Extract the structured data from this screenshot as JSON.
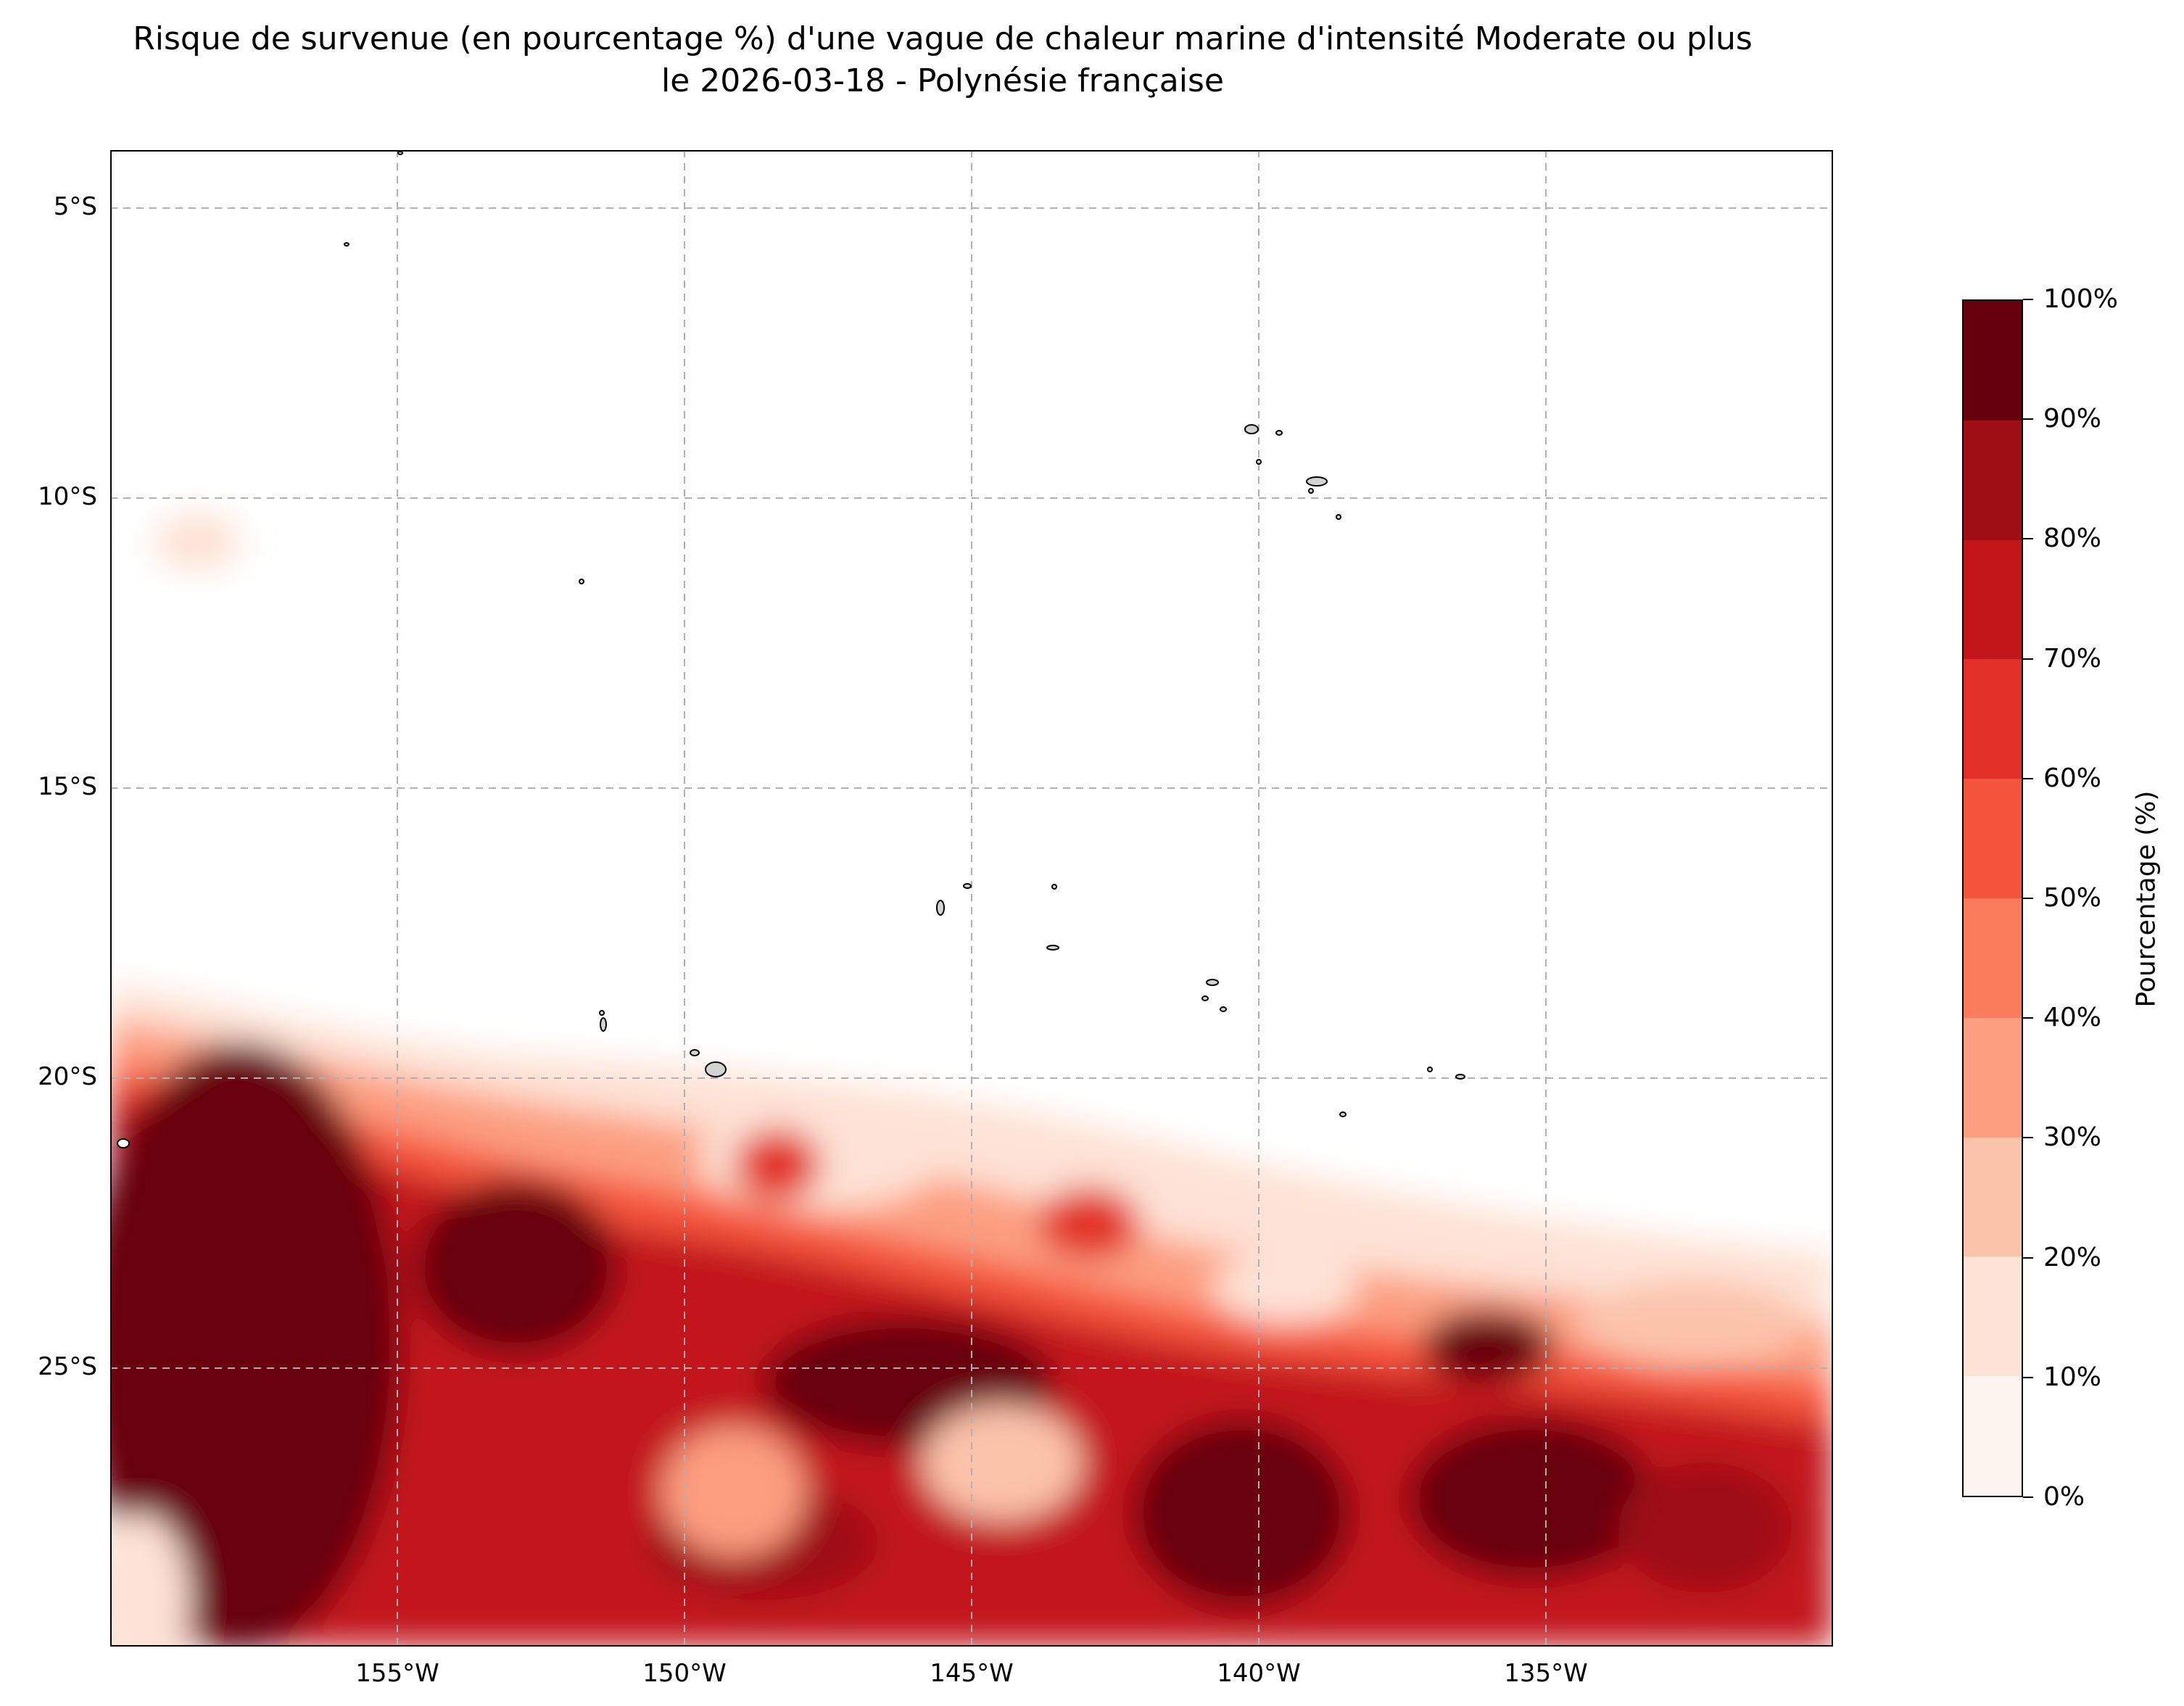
{
  "title": {
    "line1": "Risque de survenue (en pourcentage %) d'une vague de chaleur marine d'intensité Moderate ou plus",
    "line2": "le 2026-03-18 - Polynésie française"
  },
  "map": {
    "region": "Polynésie française",
    "lon_range": [
      -160,
      -130
    ],
    "lat_range": [
      -29.8,
      -4
    ],
    "grid": true,
    "x_ticks": [
      "155°W",
      "150°W",
      "145°W",
      "140°W",
      "135°W"
    ],
    "y_ticks": [
      "5°S",
      "10°S",
      "15°S",
      "20°S",
      "25°S"
    ],
    "land_color": "#d3d3d3",
    "boundary_lat_approx": -20,
    "data_coverage_south_of": -18.5
  },
  "colorbar": {
    "label": "Pourcentage (%)",
    "ticks": [
      "0%",
      "10%",
      "20%",
      "30%",
      "40%",
      "50%",
      "60%",
      "70%",
      "80%",
      "90%",
      "100%"
    ],
    "colors": [
      "#fff5f0",
      "#fee2d5",
      "#fcc3ab",
      "#fc9e80",
      "#fb7c5c",
      "#f5553d",
      "#e23028",
      "#c2161b",
      "#9f0e14",
      "#67000d"
    ]
  }
}
